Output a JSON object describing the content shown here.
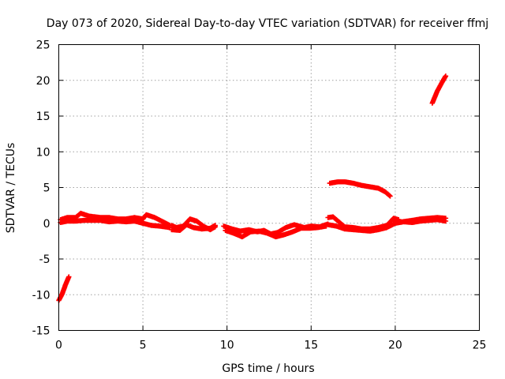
{
  "chart_data": {
    "type": "scatter",
    "title": "Day 073 of 2020, Sidereal Day-to-day VTEC variation (SDTVAR) for receiver ffmj",
    "xlabel": "GPS time / hours",
    "ylabel": "SDTVAR / TECUs",
    "xlim": [
      0,
      25
    ],
    "ylim": [
      -15,
      25
    ],
    "xticks": [
      0,
      5,
      10,
      15,
      20,
      25
    ],
    "yticks": [
      -15,
      -10,
      -5,
      0,
      5,
      10,
      15,
      20,
      25
    ],
    "grid": true,
    "marker": "+",
    "color": "#ff0000",
    "series": [
      {
        "name": "SDTVAR",
        "segments": [
          {
            "x": [
              0.0,
              0.2,
              0.4,
              0.6
            ],
            "y": [
              -10.8,
              -9.9,
              -8.6,
              -7.5
            ]
          },
          {
            "x": [
              0.1,
              0.5,
              1.0,
              1.3,
              1.8,
              2.5,
              3.0,
              3.5,
              4.0,
              4.5,
              5.0,
              5.2,
              5.7,
              6.2,
              6.6
            ],
            "y": [
              0.5,
              0.8,
              0.8,
              1.4,
              1.0,
              0.8,
              0.8,
              0.6,
              0.6,
              0.8,
              0.6,
              1.2,
              0.8,
              0.2,
              -0.3
            ]
          },
          {
            "x": [
              0.1,
              0.5,
              1.0,
              1.5,
              2.0,
              2.5,
              3.0,
              3.5,
              4.0,
              4.5,
              5.0,
              5.5,
              6.0,
              6.6
            ],
            "y": [
              0.1,
              0.3,
              0.3,
              0.4,
              0.4,
              0.4,
              0.2,
              0.3,
              0.2,
              0.3,
              0.0,
              -0.3,
              -0.4,
              -0.6
            ]
          },
          {
            "x": [
              6.7,
              7.0,
              7.4,
              7.8,
              8.2,
              8.6,
              9.0,
              9.3
            ],
            "y": [
              -0.3,
              -0.6,
              -0.4,
              0.6,
              0.3,
              -0.4,
              -0.9,
              -0.5
            ]
          },
          {
            "x": [
              6.7,
              7.2,
              7.6,
              8.0,
              8.5,
              9.0,
              9.3
            ],
            "y": [
              -0.9,
              -1.0,
              -0.2,
              -0.6,
              -0.8,
              -0.7,
              -0.3
            ]
          },
          {
            "x": [
              9.8,
              10.3,
              10.8,
              11.3,
              11.8,
              12.2,
              12.6,
              13.0,
              13.5,
              14.0,
              14.6,
              15.0,
              15.5,
              16.0
            ],
            "y": [
              -0.4,
              -0.8,
              -1.1,
              -0.9,
              -1.2,
              -1.0,
              -1.5,
              -1.3,
              -0.6,
              -0.2,
              -0.6,
              -0.4,
              -0.5,
              -0.1
            ]
          },
          {
            "x": [
              9.9,
              10.4,
              10.9,
              11.4,
              11.9,
              12.4,
              12.9,
              13.4,
              13.9,
              14.4,
              14.9,
              15.4,
              15.9
            ],
            "y": [
              -1.0,
              -1.4,
              -1.9,
              -1.2,
              -1.1,
              -1.4,
              -1.9,
              -1.6,
              -1.2,
              -0.7,
              -0.7,
              -0.6,
              -0.4
            ]
          },
          {
            "x": [
              16.0,
              16.3,
              16.7,
              17.0,
              17.5,
              18.0,
              18.5,
              19.0,
              19.5,
              19.9,
              20.2
            ],
            "y": [
              0.8,
              0.9,
              0.1,
              -0.5,
              -0.6,
              -0.8,
              -0.8,
              -0.6,
              -0.3,
              0.7,
              0.5
            ]
          },
          {
            "x": [
              16.0,
              16.5,
              17.0,
              17.5,
              18.0,
              18.5,
              19.0,
              19.5,
              20.0
            ],
            "y": [
              -0.2,
              -0.4,
              -0.8,
              -0.9,
              -1.0,
              -1.1,
              -0.9,
              -0.6,
              0.0
            ]
          },
          {
            "x": [
              16.1,
              16.6,
              17.0,
              17.5,
              18.0,
              18.5,
              19.0,
              19.4,
              19.7
            ],
            "y": [
              5.6,
              5.8,
              5.8,
              5.6,
              5.3,
              5.1,
              4.9,
              4.4,
              3.8
            ]
          },
          {
            "x": [
              19.9,
              20.4,
              21.0,
              21.5,
              22.0,
              22.5,
              23.0
            ],
            "y": [
              0.3,
              0.2,
              0.4,
              0.6,
              0.7,
              0.8,
              0.7
            ]
          },
          {
            "x": [
              20.0,
              20.5,
              21.0,
              21.5,
              22.0,
              22.5,
              23.0
            ],
            "y": [
              0.0,
              0.2,
              0.1,
              0.3,
              0.4,
              0.5,
              0.3
            ]
          },
          {
            "x": [
              22.2,
              22.5,
              22.8,
              23.0
            ],
            "y": [
              16.8,
              18.5,
              19.8,
              20.6
            ]
          }
        ]
      }
    ]
  }
}
